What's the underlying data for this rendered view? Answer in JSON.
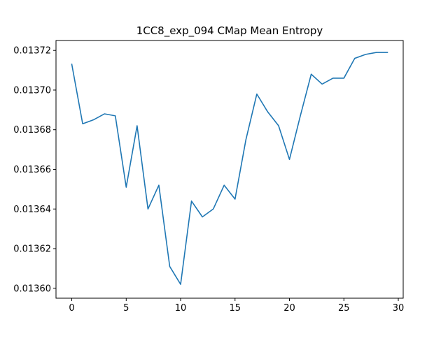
{
  "chart_data": {
    "type": "line",
    "title": "1CC8_exp_094 CMap Mean Entropy",
    "xlabel": "",
    "ylabel": "",
    "xlim": [
      -1.45,
      30.45
    ],
    "ylim": [
      0.013595,
      0.013725
    ],
    "xticks": [
      0,
      5,
      10,
      15,
      20,
      25,
      30
    ],
    "xtick_labels": [
      "0",
      "5",
      "10",
      "15",
      "20",
      "25",
      "30"
    ],
    "yticks": [
      0.0136,
      0.01362,
      0.01364,
      0.01366,
      0.01368,
      0.0137,
      0.01372
    ],
    "ytick_labels": [
      "0.01360",
      "0.01362",
      "0.01364",
      "0.01366",
      "0.01368",
      "0.01370",
      "0.01372"
    ],
    "grid": false,
    "series": [
      {
        "color": "#1f77b4",
        "x": [
          0,
          1,
          2,
          3,
          4,
          5,
          6,
          7,
          8,
          9,
          10,
          11,
          12,
          13,
          14,
          15,
          16,
          17,
          18,
          19,
          20,
          21,
          22,
          23,
          24,
          25,
          26,
          27,
          28,
          29
        ],
        "values": [
          0.013713,
          0.013683,
          0.013685,
          0.013688,
          0.013687,
          0.013651,
          0.013682,
          0.01364,
          0.013652,
          0.013611,
          0.013602,
          0.013644,
          0.013636,
          0.01364,
          0.013652,
          0.013645,
          0.013675,
          0.013698,
          0.013689,
          0.013682,
          0.013665,
          0.013687,
          0.013708,
          0.013703,
          0.013706,
          0.013706,
          0.013716,
          0.013718,
          0.013719,
          0.013719
        ]
      }
    ]
  }
}
